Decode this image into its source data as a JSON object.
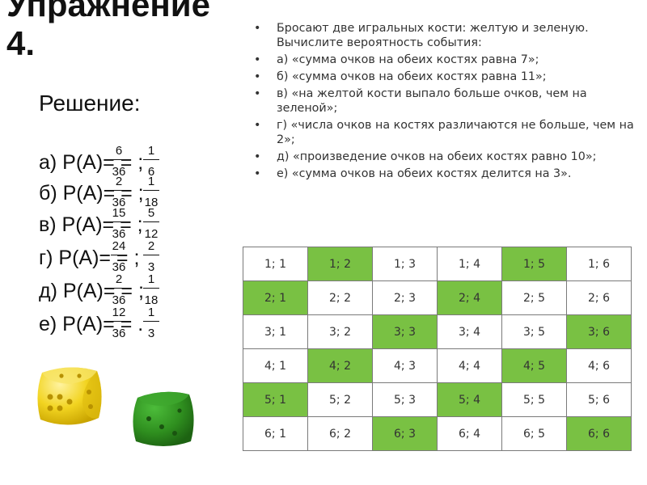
{
  "title": {
    "line1": "Упражнение",
    "line2": "4."
  },
  "solution": {
    "heading": "Решение:",
    "items": [
      {
        "label": "а) P(A)=  =  ;",
        "num1": "6",
        "den1": "36",
        "num2": "1",
        "den2": "6"
      },
      {
        "label": "б) P(A)=  =  ;",
        "num1": "2",
        "den1": "36",
        "num2": "1",
        "den2": "18"
      },
      {
        "label": "в) P(A)=  =  ;",
        "num1": "15",
        "den1": "36",
        "num2": "5",
        "den2": "12"
      },
      {
        "label": "г) P(A)=  =  ;",
        "num1": "24",
        "den1": "36",
        "num2": "2",
        "den2": "3"
      },
      {
        "label": "д) P(A)=  =  ;",
        "num1": "2",
        "den1": "36",
        "num2": "1",
        "den2": "18"
      },
      {
        "label": "е) P(A)=  =  .",
        "num1": "12",
        "den1": "36",
        "num2": "1",
        "den2": "3"
      }
    ]
  },
  "tasks": {
    "bullet": "•",
    "items": [
      "Бросают две игральных кости: желтую и зеленую. Вычислите вероятность события:",
      "а) «сумма очков на обеих костях равна 7»;",
      "б) «сумма очков на обеих костях равна 11»;",
      "в) «на желтой кости выпало больше очков, чем на зеленой»;",
      "г) «числа очков на костях различаются не больше, чем на 2»;",
      "д) «произведение очков на обеих костях равно 10»;",
      "е) «сумма очков на обеих костях делится на 3»."
    ]
  },
  "outcomes_table": {
    "highlight_color": "#79c143",
    "rows": [
      [
        {
          "text": "1; 1",
          "hl": false
        },
        {
          "text": "1; 2",
          "hl": true
        },
        {
          "text": "1; 3",
          "hl": false
        },
        {
          "text": "1; 4",
          "hl": false
        },
        {
          "text": "1; 5",
          "hl": true
        },
        {
          "text": "1; 6",
          "hl": false
        }
      ],
      [
        {
          "text": "2; 1",
          "hl": true
        },
        {
          "text": "2; 2",
          "hl": false
        },
        {
          "text": "2; 3",
          "hl": false
        },
        {
          "text": "2; 4",
          "hl": true
        },
        {
          "text": "2; 5",
          "hl": false
        },
        {
          "text": "2; 6",
          "hl": false
        }
      ],
      [
        {
          "text": "3; 1",
          "hl": false
        },
        {
          "text": "3; 2",
          "hl": false
        },
        {
          "text": "3; 3",
          "hl": true
        },
        {
          "text": "3; 4",
          "hl": false
        },
        {
          "text": "3; 5",
          "hl": false
        },
        {
          "text": "3; 6",
          "hl": true
        }
      ],
      [
        {
          "text": "4; 1",
          "hl": false
        },
        {
          "text": "4; 2",
          "hl": true
        },
        {
          "text": "4; 3",
          "hl": false
        },
        {
          "text": "4; 4",
          "hl": false
        },
        {
          "text": "4; 5",
          "hl": true
        },
        {
          "text": "4; 6",
          "hl": false
        }
      ],
      [
        {
          "text": "5; 1",
          "hl": true
        },
        {
          "text": "5; 2",
          "hl": false
        },
        {
          "text": "5; 3",
          "hl": false
        },
        {
          "text": "5; 4",
          "hl": true
        },
        {
          "text": "5; 5",
          "hl": false
        },
        {
          "text": "5; 6",
          "hl": false
        }
      ],
      [
        {
          "text": "6; 1",
          "hl": false
        },
        {
          "text": "6; 2",
          "hl": false
        },
        {
          "text": "6; 3",
          "hl": true
        },
        {
          "text": "6; 4",
          "hl": false
        },
        {
          "text": "6; 5",
          "hl": false
        },
        {
          "text": "6; 6",
          "hl": true
        }
      ]
    ]
  },
  "images": [
    {
      "icon": "yellow-die-icon",
      "color": "#f2d421"
    },
    {
      "icon": "green-die-icon",
      "color": "#2f8f1f"
    }
  ]
}
